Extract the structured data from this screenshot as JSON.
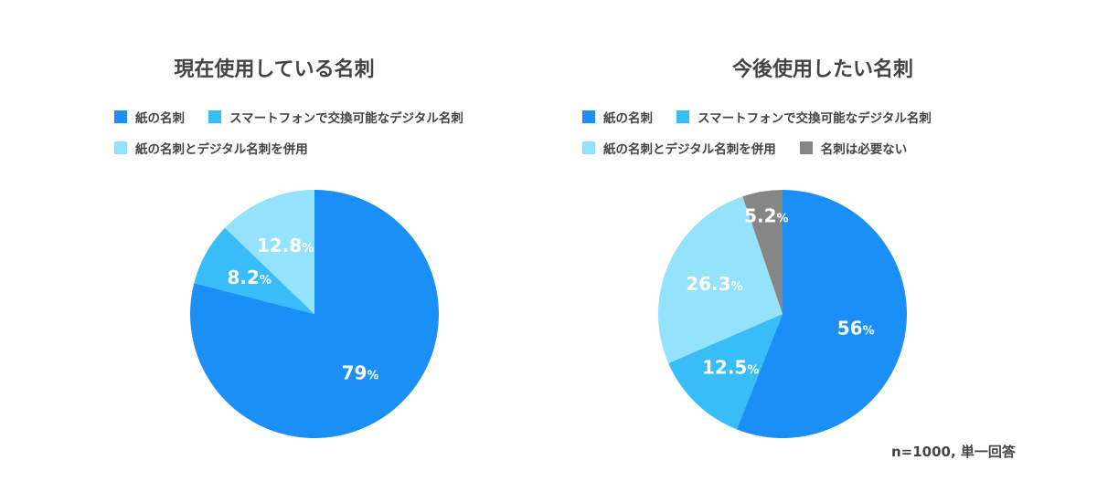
{
  "chart_data": [
    {
      "type": "pie",
      "title": "現在使用している名刺",
      "start_angle_deg": 0,
      "slices": [
        {
          "label": "紙の名刺",
          "value": 79,
          "value_text": "79",
          "color": "#1b8ff5"
        },
        {
          "label": "スマートフォンで交換可能なデジタル名刺",
          "value": 8.2,
          "value_text": "8.2",
          "color": "#38bdf8"
        },
        {
          "label": "紙の名刺とデジタル名刺を併用",
          "value": 12.8,
          "value_text": "12.8",
          "color": "#94e2fb"
        }
      ],
      "unit": "%",
      "legend_position": "top"
    },
    {
      "type": "pie",
      "title": "今後使用したい名刺",
      "start_angle_deg": 0,
      "slices": [
        {
          "label": "紙の名刺",
          "value": 56,
          "value_text": "56",
          "color": "#1b8ff5"
        },
        {
          "label": "スマートフォンで交換可能なデジタル名刺",
          "value": 12.5,
          "value_text": "12.5",
          "color": "#38bdf8"
        },
        {
          "label": "紙の名刺とデジタル名刺を併用",
          "value": 26.3,
          "value_text": "26.3",
          "color": "#94e2fb"
        },
        {
          "label": "名刺は必要ない",
          "value": 5.2,
          "value_text": "5.2",
          "color": "#868686"
        }
      ],
      "unit": "%",
      "legend_position": "top"
    }
  ],
  "note": "n=1000, 単一回答",
  "colors": {
    "label_text": "#ffffff",
    "title_text": "#444444"
  }
}
